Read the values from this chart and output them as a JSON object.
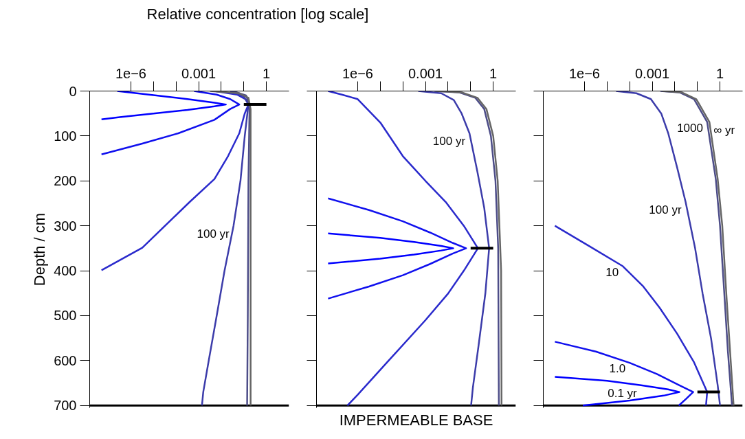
{
  "chart_data": [
    {
      "type": "line",
      "xlabel": "Relative concentration [log scale]",
      "ylabel": "Depth / cm",
      "log": "x",
      "xlim": [
        1.5e-08,
        10
      ],
      "ylim": [
        705,
        0
      ],
      "xticks": [
        {
          "value": 1e-06,
          "label": "1e−6"
        },
        {
          "value": 1e-05,
          "label": null
        },
        {
          "value": 0.0001,
          "label": null
        },
        0.001,
        {
          "value": 0.01,
          "label": null
        },
        {
          "value": 0.1,
          "label": null
        },
        1
      ],
      "yticks": [
        0,
        100,
        200,
        300,
        400,
        500,
        600,
        700
      ],
      "series": [
        {
          "color": "#0000ff",
          "x": [
            2.5e-07,
            1e-05,
            0.00032,
            0.005,
            0.016,
            0.005,
            0.00032,
            1e-05,
            3.2e-07,
            5e-08
          ],
          "values": [
            0,
            9,
            18,
            26,
            30,
            34,
            42,
            50,
            58,
            63
          ]
        },
        {
          "color": "#1010ee",
          "x": [
            0.00063,
            0.0063,
            0.025,
            0.063,
            0.025,
            0.005,
            0.000126,
            3.2e-06,
            5e-08
          ],
          "values": [
            0,
            8,
            18,
            30,
            40,
            64,
            94,
            117,
            141
          ]
        },
        {
          "color": "#2a2acc",
          "x": [
            0.005,
            0.05,
            0.14,
            0.16,
            0.11,
            0.063,
            0.02,
            0.005,
            0.0004,
            3.2e-06,
            5e-08
          ],
          "values": [
            0,
            8,
            20,
            30,
            50,
            94,
            145,
            196,
            247,
            349,
            399
          ]
        },
        {
          "color": "#3c3caa",
          "x": [
            0.025,
            0.1,
            0.16,
            0.11,
            0.071,
            0.035,
            0.014,
            0.0063,
            0.0028,
            0.0016,
            0.0014
          ],
          "values": [
            0,
            12,
            30,
            100,
            200,
            300,
            400,
            500,
            600,
            670,
            700
          ]
        },
        {
          "color": "#4d4d88",
          "x": [
            0.032,
            0.126,
            0.18,
            0.16,
            0.15,
            0.14
          ],
          "values": [
            0,
            10,
            30,
            200,
            500,
            700
          ]
        },
        {
          "color": "#666666",
          "x": [
            0.0032,
            0.063,
            0.16,
            0.2,
            0.2
          ],
          "values": [
            0,
            5,
            15,
            40,
            700
          ]
        },
        {
          "color": "#000000",
          "x": [
            0.1,
            1
          ],
          "values": [
            30,
            30
          ]
        }
      ],
      "ref_lines": [
        {
          "axis": "y",
          "value": 700,
          "color": "#000000"
        }
      ],
      "annotations": [
        {
          "text": "100 yr",
          "x": 0.035,
          "y": 300
        }
      ]
    },
    {
      "type": "line",
      "tick_labels": "x",
      "log": "x",
      "xlim": [
        1.5e-08,
        10
      ],
      "ylim": [
        705,
        0
      ],
      "xticks": [
        {
          "value": 1e-06,
          "label": "1e−6"
        },
        {
          "value": 1e-05,
          "label": null
        },
        {
          "value": 0.0001,
          "label": null
        },
        0.001,
        {
          "value": 0.01,
          "label": null
        },
        {
          "value": 0.1,
          "label": null
        },
        1
      ],
      "yticks": [
        0,
        100,
        200,
        300,
        400,
        500,
        600,
        700
      ],
      "series": [
        {
          "color": "#0000ff",
          "x": [
            4.9e-08,
            1e-05,
            0.00032,
            0.005,
            0.017,
            0.005,
            0.00032,
            1e-05,
            4.9e-08
          ],
          "values": [
            317,
            327,
            336,
            345,
            350,
            355,
            364,
            373,
            384
          ]
        },
        {
          "color": "#1010ee",
          "x": [
            4.9e-08,
            3.2e-06,
            0.0001,
            0.0016,
            0.016,
            0.063,
            0.016,
            0.0016,
            0.0001,
            3.2e-06,
            4.9e-08
          ],
          "values": [
            239,
            265,
            290,
            315,
            338,
            350,
            362,
            385,
            410,
            435,
            462
          ]
        },
        {
          "color": "#2a2acc",
          "x": [
            4.9e-08,
            2e-07,
            1e-06,
            1e-05,
            0.0001,
            0.001,
            0.0079,
            0.05,
            0.21,
            0.05,
            0.01,
            0.001,
            2e-05,
            1e-06,
            3.5e-07
          ],
          "values": [
            0,
            8,
            18,
            70,
            145,
            200,
            247,
            300,
            350,
            400,
            451,
            510,
            604,
            676,
            700
          ]
        },
        {
          "color": "#3c3caa",
          "x": [
            0.00048,
            0.005,
            0.018,
            0.04,
            0.089,
            0.2,
            0.4,
            0.66,
            0.45,
            0.22,
            0.126,
            0.105
          ],
          "values": [
            0,
            5,
            20,
            50,
            94,
            180,
            260,
            350,
            450,
            570,
            660,
            700
          ]
        },
        {
          "color": "#4d4d88",
          "x": [
            0.0025,
            0.032,
            0.16,
            0.4,
            0.79,
            1.26,
            1.66,
            1.78
          ],
          "values": [
            0,
            3,
            15,
            40,
            100,
            200,
            350,
            700
          ]
        },
        {
          "color": "#666666",
          "x": [
            0.0032,
            0.04,
            0.2,
            0.5,
            1,
            1.58,
            2.24,
            2.34
          ],
          "values": [
            0,
            3,
            15,
            40,
            100,
            200,
            400,
            700
          ]
        },
        {
          "color": "#000000",
          "x": [
            0.1,
            1
          ],
          "values": [
            350,
            350
          ]
        }
      ],
      "ref_lines": [
        {
          "axis": "y",
          "value": 700,
          "color": "#000000",
          "label": "IMPERMEABLE BASE"
        }
      ],
      "annotations": [
        {
          "text": "100 yr",
          "x": 0.089,
          "y": 94
        }
      ]
    },
    {
      "type": "line",
      "tick_labels": "x",
      "log": "x",
      "xlim": [
        1.5e-08,
        10
      ],
      "ylim": [
        705,
        0
      ],
      "xticks": [
        {
          "value": 1e-06,
          "label": "1e−6"
        },
        {
          "value": 1e-05,
          "label": null
        },
        {
          "value": 0.0001,
          "label": null
        },
        0.001,
        {
          "value": 0.01,
          "label": null
        },
        {
          "value": 0.1,
          "label": null
        },
        1
      ],
      "yticks": [
        0,
        100,
        200,
        300,
        400,
        500,
        600,
        700
      ],
      "series": [
        {
          "color": "#0000ff",
          "x": [
            4.9e-08,
            1e-05,
            0.00032,
            0.005,
            0.016,
            0.0032,
            0.0001,
            8.5e-07
          ],
          "values": [
            636,
            645,
            655,
            664,
            670,
            678,
            689,
            700
          ]
        },
        {
          "color": "#1010ee",
          "x": [
            4.9e-08,
            3.2e-06,
            0.0001,
            0.0016,
            0.016,
            0.065,
            0.032,
            0.015
          ],
          "values": [
            558,
            580,
            605,
            630,
            655,
            670,
            685,
            700
          ]
        },
        {
          "color": "#2a2acc",
          "x": [
            4.9e-08,
            1.6e-06,
            5e-05,
            0.0004,
            0.0021,
            0.0126,
            0.071,
            0.27,
            0.24
          ],
          "values": [
            300,
            345,
            390,
            435,
            482,
            540,
            604,
            670,
            700
          ]
        },
        {
          "color": "#3c3caa",
          "x": [
            2.5e-05,
            0.0002,
            0.00087,
            0.0025,
            0.0051,
            0.0126,
            0.03,
            0.079,
            0.17,
            0.4,
            0.79,
            1
          ],
          "values": [
            0,
            5,
            18,
            50,
            94,
            170,
            247,
            350,
            451,
            550,
            655,
            700
          ]
        },
        {
          "color": "#4d4d88",
          "x": [
            0.0023,
            0.016,
            0.071,
            0.27,
            0.65,
            1,
            1.55,
            2.24,
            3.4
          ],
          "values": [
            0,
            3,
            18,
            69,
            196,
            300,
            451,
            580,
            700
          ]
        },
        {
          "color": "#666666",
          "x": [
            0.0028,
            0.02,
            0.089,
            0.34,
            0.79,
            1.26,
            1.9,
            2.8,
            4
          ],
          "values": [
            0,
            3,
            18,
            69,
            196,
            300,
            451,
            580,
            700
          ]
        },
        {
          "color": "#000000",
          "x": [
            0.1,
            1
          ],
          "values": [
            670,
            670
          ]
        }
      ],
      "ref_lines": [
        {
          "axis": "y",
          "value": 700,
          "color": "#000000"
        }
      ],
      "annotations": [
        {
          "text": "∞ yr",
          "x": 0.34,
          "y": 69
        },
        {
          "text": "1000",
          "x": 0.27,
          "y": 69
        },
        {
          "text": "100 yr",
          "x": 0.03,
          "y": 247
        },
        {
          "text": "10",
          "x": 5e-05,
          "y": 390
        },
        {
          "text": "1.0",
          "x": 0.0001,
          "y": 605
        },
        {
          "text": "0.1 yr",
          "x": 0.00032,
          "y": 655
        }
      ]
    }
  ]
}
